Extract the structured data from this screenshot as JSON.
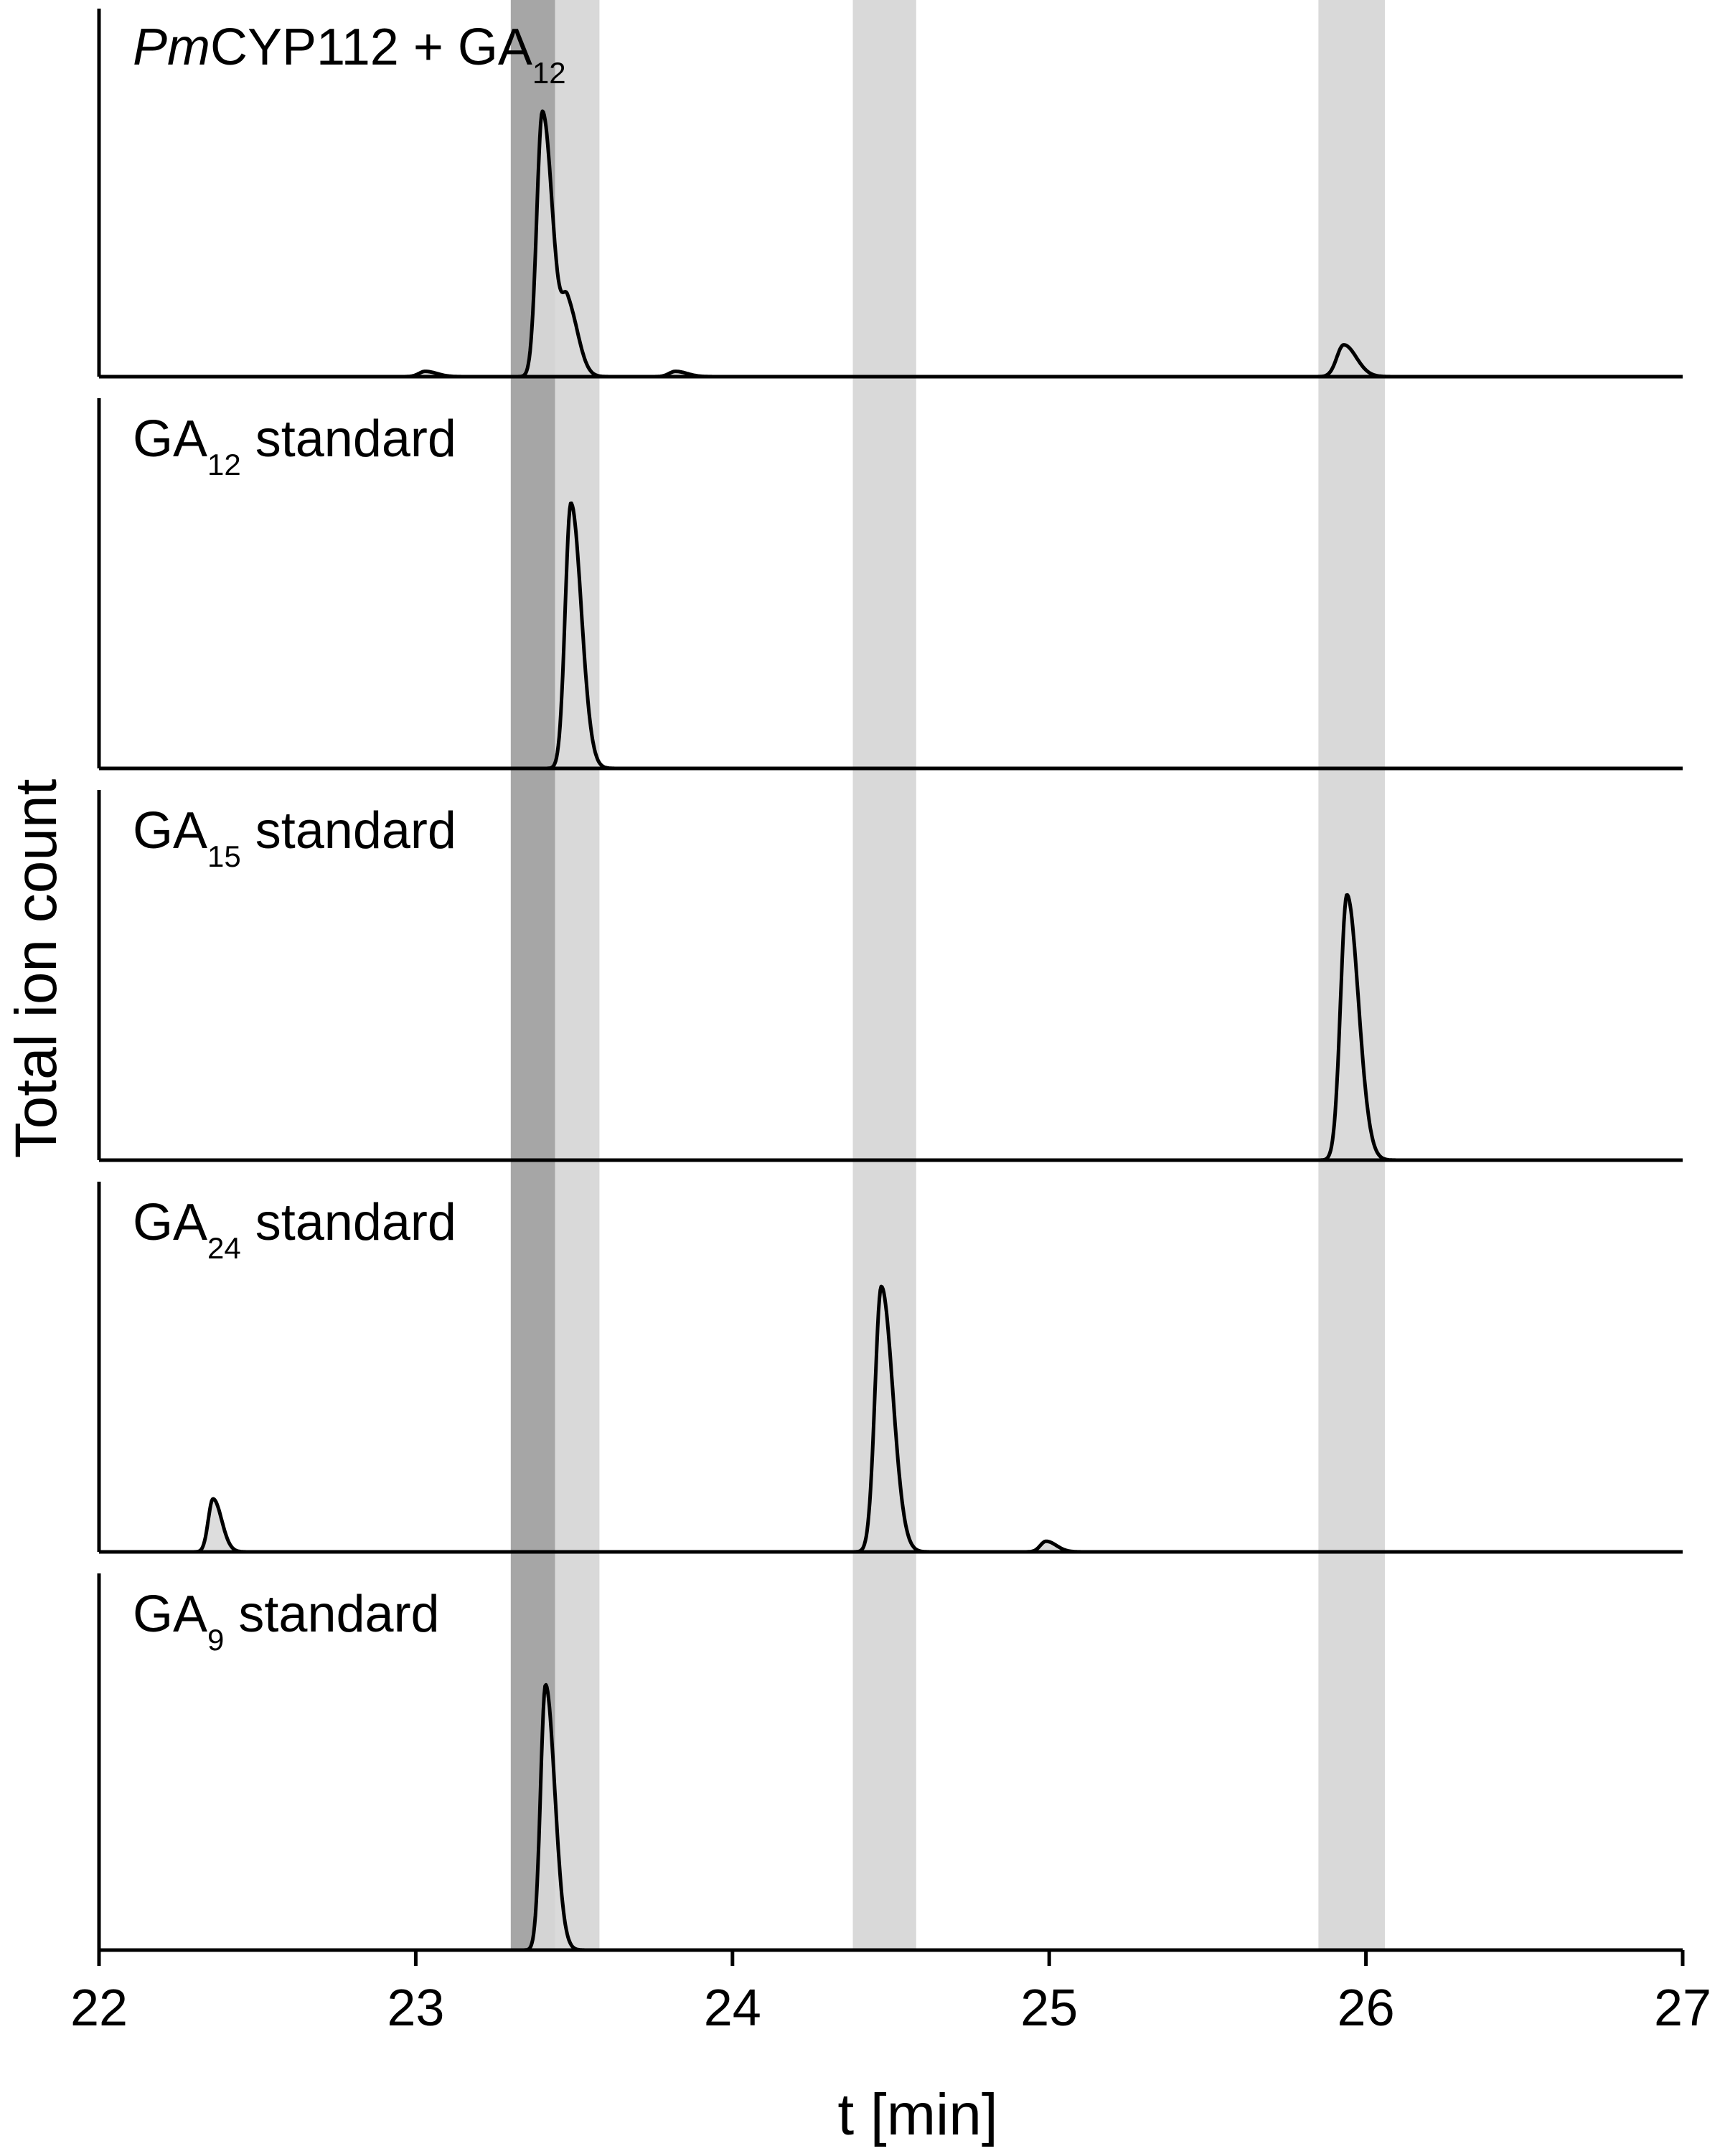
{
  "chart_data": {
    "type": "line",
    "xlabel": "t [min]",
    "ylabel": "Total ion count",
    "xlim": [
      22,
      27
    ],
    "x_ticks": [
      "22",
      "23",
      "24",
      "25",
      "26",
      "27"
    ],
    "grid": false,
    "y_axis_ticks": false,
    "highlight_bands_min": [
      {
        "from": 23.3,
        "to": 23.44,
        "shade": "dark"
      },
      {
        "from": 23.44,
        "to": 23.58,
        "shade": "light"
      },
      {
        "from": 24.38,
        "to": 24.58,
        "shade": "light"
      },
      {
        "from": 25.85,
        "to": 26.06,
        "shade": "light"
      }
    ],
    "panels": [
      {
        "label_prefix_italic": "Pm",
        "label_main": "CYP112 + GA",
        "label_sub": "12",
        "label_suffix": "",
        "peaks": [
          {
            "rt": 23.03,
            "height": 0.02,
            "width": 0.02
          },
          {
            "rt": 23.4,
            "height": 1.0,
            "width": 0.018
          },
          {
            "rt": 23.48,
            "height": 0.26,
            "width": 0.018
          },
          {
            "rt": 23.82,
            "height": 0.02,
            "width": 0.02
          },
          {
            "rt": 25.93,
            "height": 0.12,
            "width": 0.022
          }
        ]
      },
      {
        "label_prefix_italic": "",
        "label_main": "GA",
        "label_sub": "12",
        "label_suffix": " standard",
        "peaks": [
          {
            "rt": 23.49,
            "height": 1.0,
            "width": 0.018
          }
        ]
      },
      {
        "label_prefix_italic": "",
        "label_main": "GA",
        "label_sub": "15",
        "label_suffix": " standard",
        "peaks": [
          {
            "rt": 25.94,
            "height": 1.0,
            "width": 0.02
          }
        ]
      },
      {
        "label_prefix_italic": "",
        "label_main": "GA",
        "label_sub": "24",
        "label_suffix": " standard",
        "peaks": [
          {
            "rt": 22.36,
            "height": 0.2,
            "width": 0.015
          },
          {
            "rt": 24.47,
            "height": 1.0,
            "width": 0.02
          },
          {
            "rt": 24.99,
            "height": 0.04,
            "width": 0.018
          }
        ]
      },
      {
        "label_prefix_italic": "",
        "label_main": "GA",
        "label_sub": "9",
        "label_suffix": " standard",
        "peaks": [
          {
            "rt": 23.41,
            "height": 1.0,
            "width": 0.016
          }
        ]
      }
    ],
    "colors": {
      "trace": "#000000",
      "peak_fill": "#d9d9d9",
      "band_light": "#d9d9d9",
      "band_dark": "#a6a6a6"
    }
  }
}
